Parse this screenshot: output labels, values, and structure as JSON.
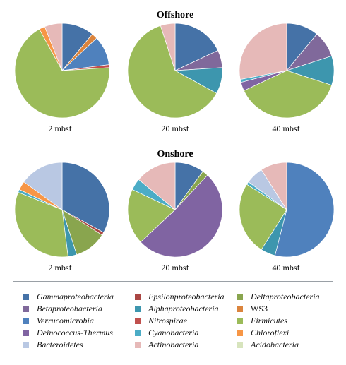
{
  "chart_data": {
    "type": "pie",
    "groups": [
      {
        "title": "Offshore",
        "pies": [
          {
            "label": "2 mbsf",
            "slices": [
              {
                "taxon": "Gammaproteobacteria",
                "value": 11
              },
              {
                "taxon": "WS3",
                "value": 2
              },
              {
                "taxon": "Verrucomicrobia",
                "value": 10
              },
              {
                "taxon": "Nitrospirae",
                "value": 1
              },
              {
                "taxon": "Firmicutes",
                "value": 68
              },
              {
                "taxon": "Chloroflexi",
                "value": 2
              },
              {
                "taxon": "Actinobacteria",
                "value": 6
              }
            ]
          },
          {
            "label": "20 mbsf",
            "slices": [
              {
                "taxon": "Gammaproteobacteria",
                "value": 18
              },
              {
                "taxon": "Betaproteobacteria",
                "value": 6
              },
              {
                "taxon": "Alphaproteobacteria",
                "value": 9
              },
              {
                "taxon": "Firmicutes",
                "value": 62
              },
              {
                "taxon": "Actinobacteria",
                "value": 5
              }
            ]
          },
          {
            "label": "40 mbsf",
            "slices": [
              {
                "taxon": "Gammaproteobacteria",
                "value": 11
              },
              {
                "taxon": "Betaproteobacteria",
                "value": 9
              },
              {
                "taxon": "Alphaproteobacteria",
                "value": 10
              },
              {
                "taxon": "Firmicutes",
                "value": 38
              },
              {
                "taxon": "Deinococcus-Thermus",
                "value": 3
              },
              {
                "taxon": "Cyanobacteria",
                "value": 1
              },
              {
                "taxon": "Actinobacteria",
                "value": 28
              }
            ]
          }
        ]
      },
      {
        "title": "Onshore",
        "pies": [
          {
            "label": "2 mbsf",
            "slices": [
              {
                "taxon": "Gammaproteobacteria",
                "value": 33
              },
              {
                "taxon": "Epsilonproteobacteria",
                "value": 1
              },
              {
                "taxon": "Deltaproteobacteria",
                "value": 11
              },
              {
                "taxon": "Alphaproteobacteria",
                "value": 3
              },
              {
                "taxon": "Firmicutes",
                "value": 33
              },
              {
                "taxon": "Cyanobacteria",
                "value": 1
              },
              {
                "taxon": "Chloroflexi",
                "value": 3
              },
              {
                "taxon": "Bacteroidetes",
                "value": 15
              }
            ]
          },
          {
            "label": "20 mbsf",
            "slices": [
              {
                "taxon": "Gammaproteobacteria",
                "value": 10
              },
              {
                "taxon": "Deltaproteobacteria",
                "value": 2
              },
              {
                "taxon": "Deinococcus-Thermus",
                "value": 51
              },
              {
                "taxon": "Firmicutes",
                "value": 19
              },
              {
                "taxon": "Cyanobacteria",
                "value": 4
              },
              {
                "taxon": "Actinobacteria",
                "value": 14
              }
            ]
          },
          {
            "label": "40 mbsf",
            "slices": [
              {
                "taxon": "Verrucomicrobia",
                "value": 54
              },
              {
                "taxon": "Alphaproteobacteria",
                "value": 5
              },
              {
                "taxon": "Firmicutes",
                "value": 25
              },
              {
                "taxon": "Cyanobacteria",
                "value": 1
              },
              {
                "taxon": "Bacteroidetes",
                "value": 6
              },
              {
                "taxon": "Actinobacteria",
                "value": 9
              }
            ]
          }
        ]
      }
    ],
    "legend": {
      "placement": "bottom",
      "entries": [
        {
          "name": "Gammaproteobacteria",
          "color": "#4572a7",
          "italic": true
        },
        {
          "name": "Epsilonproteobacteria",
          "color": "#aa4643",
          "italic": true
        },
        {
          "name": "Deltaproteobacteria",
          "color": "#89a54e",
          "italic": true
        },
        {
          "name": "Betaproteobacteria",
          "color": "#80699b",
          "italic": true
        },
        {
          "name": "Alphaproteobacteria",
          "color": "#3d96ae",
          "italic": true
        },
        {
          "name": "WS3",
          "color": "#db843d",
          "italic": false
        },
        {
          "name": "Verrucomicrobia",
          "color": "#4f81bd",
          "italic": true
        },
        {
          "name": "Nitrospirae",
          "color": "#c0504d",
          "italic": true
        },
        {
          "name": "Firmicutes",
          "color": "#9bbb59",
          "italic": true
        },
        {
          "name": "Deinococcus-Thermus",
          "color": "#8064a2",
          "italic": true
        },
        {
          "name": "Cyanobacteria",
          "color": "#4bacc6",
          "italic": true
        },
        {
          "name": "Chloroflexi",
          "color": "#f79646",
          "italic": true
        },
        {
          "name": "Bacteroidetes",
          "color": "#b9c8e3",
          "italic": true
        },
        {
          "name": "Actinobacteria",
          "color": "#e6b9b8",
          "italic": true
        },
        {
          "name": "Acidobacteria",
          "color": "#d7e4bd",
          "italic": true
        }
      ]
    }
  }
}
